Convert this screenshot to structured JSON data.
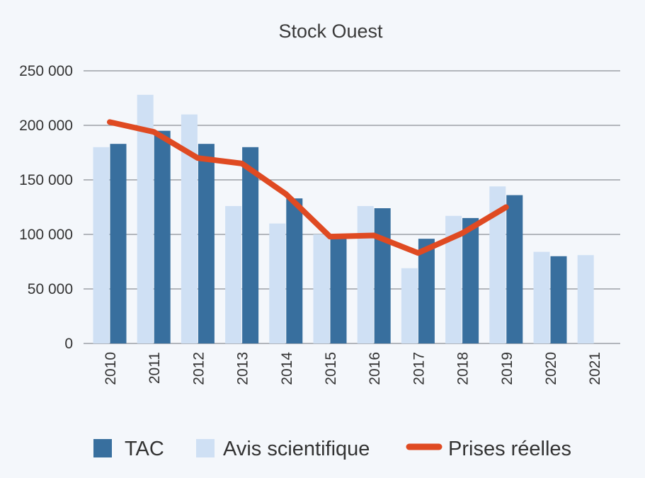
{
  "chart_data": {
    "type": "bar",
    "title": "Stock Ouest",
    "xlabel": "",
    "ylabel": "",
    "categories": [
      "2010",
      "2011",
      "2012",
      "2013",
      "2014",
      "2015",
      "2016",
      "2017",
      "2018",
      "2019",
      "2020",
      "2021"
    ],
    "ylim": [
      0,
      250000
    ],
    "yticks": [
      0,
      50000,
      100000,
      150000,
      200000,
      250000
    ],
    "ytick_labels": [
      "0",
      "50 000",
      "100 000",
      "150 000",
      "200 000",
      "250 000"
    ],
    "grid": true,
    "legend_position": "bottom",
    "series": [
      {
        "name": "Avis scientifique",
        "kind": "bar",
        "color": "#cfe0f4",
        "values": [
          180000,
          228000,
          210000,
          126000,
          110000,
          100000,
          126000,
          69000,
          117000,
          144000,
          84000,
          81000
        ]
      },
      {
        "name": "TAC",
        "kind": "bar",
        "color": "#386f9e",
        "values": [
          183000,
          195000,
          183000,
          180000,
          133000,
          100000,
          124000,
          96000,
          115000,
          136000,
          80000,
          null
        ]
      },
      {
        "name": "Prises réelles",
        "kind": "line",
        "color": "#df4a22",
        "values": [
          203000,
          194000,
          170000,
          165000,
          137000,
          98000,
          99000,
          83000,
          101000,
          125000,
          null,
          null
        ]
      }
    ],
    "legend": [
      "TAC",
      "Avis scientifique",
      "Prises réelles"
    ]
  }
}
